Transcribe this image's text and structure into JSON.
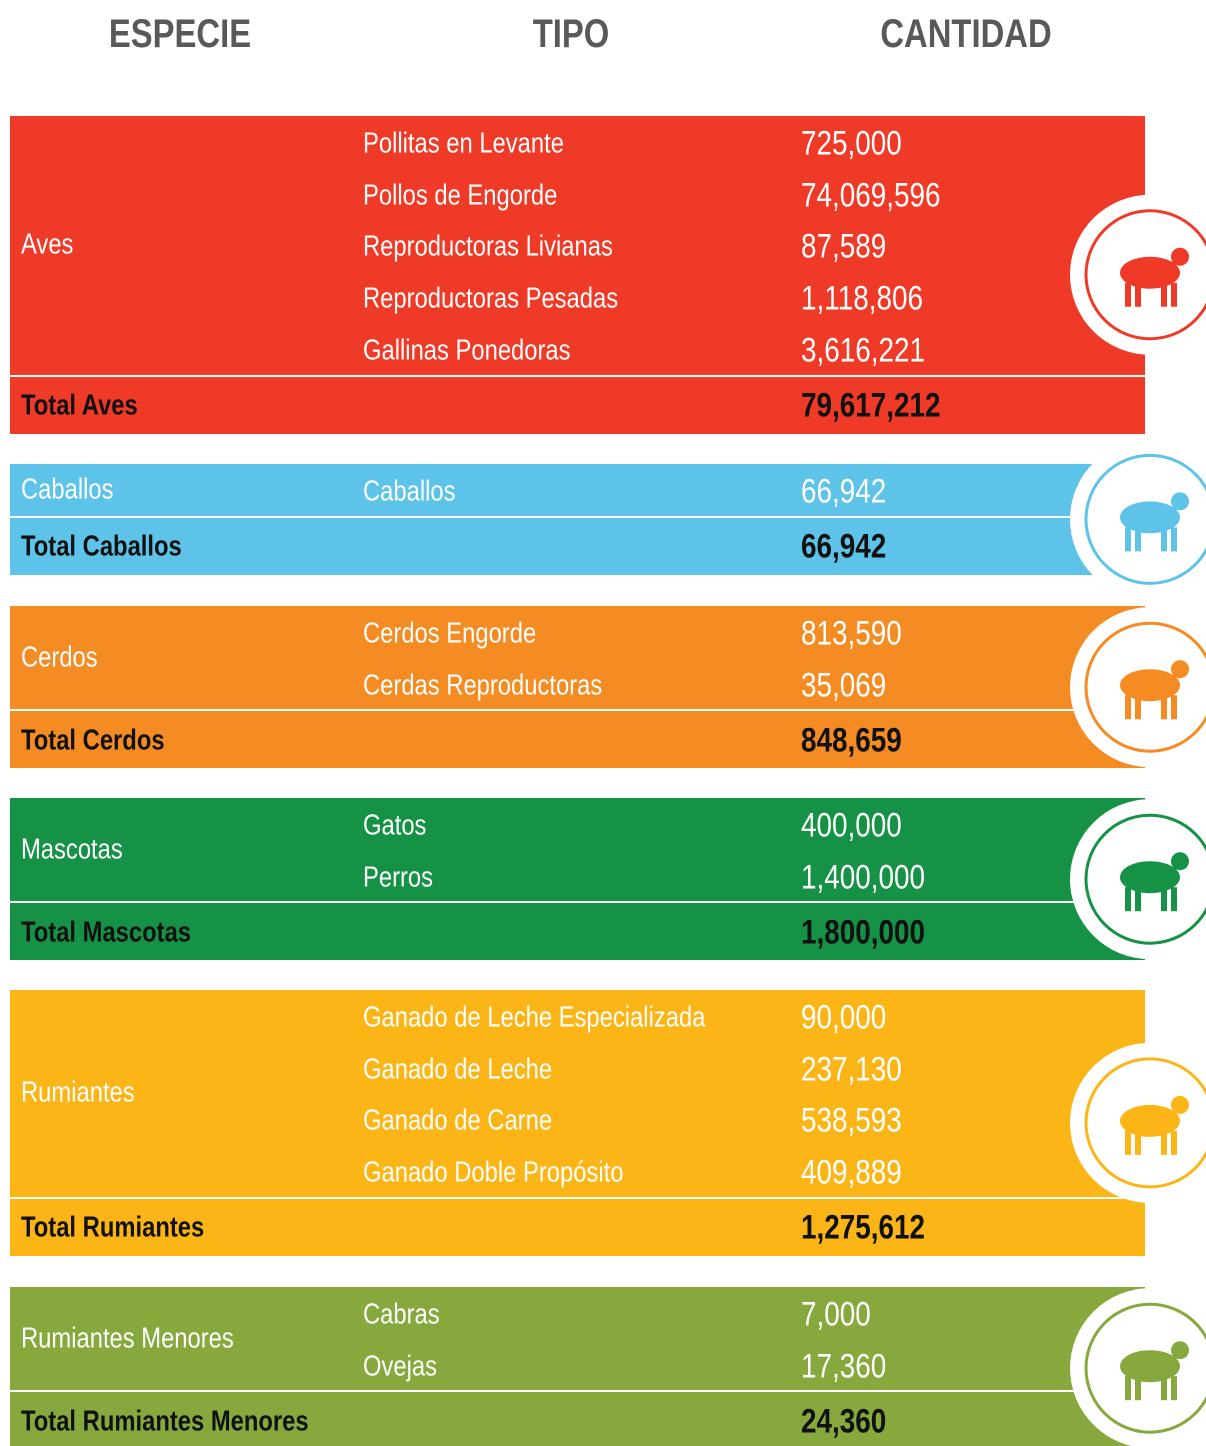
{
  "header": {
    "especie": "ESPECIE",
    "tipo": "TIPO",
    "cantidad": "CANTIDAD"
  },
  "groups": [
    {
      "species": "Aves",
      "color": "#ee3a26",
      "rows": [
        [
          "Pollitas en Levante",
          "725,000"
        ],
        [
          "Pollos de Engorde",
          "74,069,596"
        ],
        [
          "Reproductoras Livianas",
          "87,589"
        ],
        [
          "Reproductoras Pesadas",
          "1,118,806"
        ],
        [
          "Gallinas Ponedoras",
          "3,616,221"
        ]
      ],
      "total_label": "Total Aves",
      "total": "79,617,212"
    },
    {
      "species": "Caballos",
      "color": "#5ec3e8",
      "rows": [
        [
          "Caballos",
          "66,942"
        ]
      ],
      "total_label": "Total Caballos",
      "total": "66,942"
    },
    {
      "species": "Cerdos",
      "color": "#f48c23",
      "rows": [
        [
          "Cerdos Engorde",
          "813,590"
        ],
        [
          "Cerdas Reproductoras",
          "35,069"
        ]
      ],
      "total_label": "Total Cerdos",
      "total": "848,659"
    },
    {
      "species": "Mascotas",
      "color": "#169246",
      "rows": [
        [
          "Gatos",
          "400,000"
        ],
        [
          "Perros",
          "1,400,000"
        ]
      ],
      "total_label": "Total Mascotas",
      "total": "1,800,000"
    },
    {
      "species": "Rumiantes",
      "color": "#fbb516",
      "rows": [
        [
          "Ganado de Leche Especializada",
          "90,000"
        ],
        [
          "Ganado de Leche",
          "237,130"
        ],
        [
          "Ganado de Carne",
          "538,593"
        ],
        [
          "Ganado Doble Propósito",
          "409,889"
        ]
      ],
      "total_label": "Total Rumiantes",
      "total": "1,275,612"
    },
    {
      "species": "Rumiantes Menores",
      "color": "#86a83d",
      "rows": [
        [
          "Cabras",
          "7,000"
        ],
        [
          "Ovejas",
          "17,360"
        ]
      ],
      "total_label": "Total Rumiantes Menores",
      "total": "24,360"
    }
  ]
}
